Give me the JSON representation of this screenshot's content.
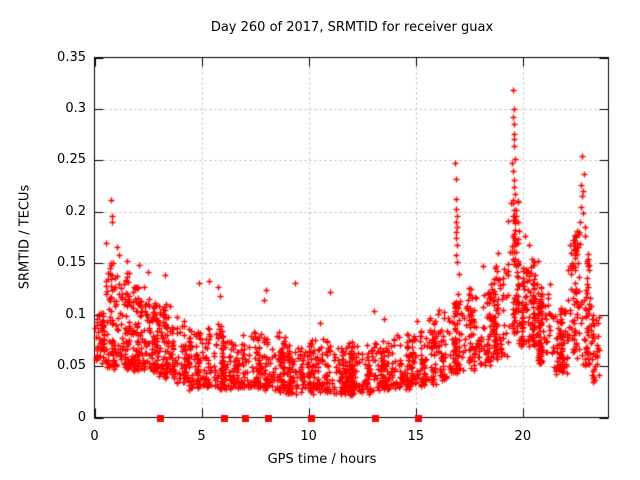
{
  "chart_data": {
    "type": "scatter",
    "title": "Day 260 of 2017, SRMTID for receiver guax",
    "xlabel": "GPS time / hours",
    "ylabel": "SRMTID / TECUs",
    "xlim": [
      0,
      24
    ],
    "ylim": [
      0,
      0.35
    ],
    "xticks": [
      0,
      5,
      10,
      15,
      20
    ],
    "xtick_labels": [
      "0",
      "5",
      "10",
      "15",
      "20"
    ],
    "yticks": [
      0,
      0.05,
      0.1,
      0.15,
      0.2,
      0.25,
      0.3,
      0.35
    ],
    "ytick_labels": [
      "0",
      "0.05",
      "0.1",
      "0.15",
      "0.2",
      "0.25",
      "0.3",
      "0.35"
    ],
    "grid": {
      "show": true,
      "color": "#b8b8b8",
      "dash": [
        2,
        3
      ]
    },
    "legend": "none",
    "frame_color": "#000000",
    "text_color": "#000000",
    "series_color": "#ff0000",
    "marker": "plus",
    "marker_size": 7,
    "point_cloud_segments": [
      [
        0.0,
        0.5,
        55,
        0.055,
        0.105,
        1.3
      ],
      [
        0.5,
        1.0,
        70,
        0.05,
        0.155,
        1.6
      ],
      [
        1.0,
        1.6,
        85,
        0.05,
        0.145,
        1.5
      ],
      [
        1.6,
        2.2,
        80,
        0.048,
        0.13,
        1.6
      ],
      [
        2.2,
        3.0,
        100,
        0.045,
        0.115,
        1.5
      ],
      [
        3.0,
        3.6,
        70,
        0.04,
        0.11,
        1.5
      ],
      [
        3.6,
        4.4,
        75,
        0.035,
        0.095,
        1.5
      ],
      [
        4.4,
        5.2,
        85,
        0.03,
        0.085,
        1.6
      ],
      [
        5.2,
        6.0,
        90,
        0.03,
        0.09,
        1.7
      ],
      [
        6.0,
        7.0,
        95,
        0.03,
        0.082,
        1.7
      ],
      [
        7.0,
        8.0,
        95,
        0.03,
        0.085,
        1.7
      ],
      [
        8.0,
        9.0,
        95,
        0.028,
        0.08,
        1.7
      ],
      [
        9.0,
        10.0,
        95,
        0.025,
        0.072,
        1.6
      ],
      [
        10.0,
        11.0,
        100,
        0.025,
        0.075,
        1.6
      ],
      [
        11.0,
        12.0,
        105,
        0.025,
        0.072,
        1.6
      ],
      [
        12.0,
        13.0,
        100,
        0.025,
        0.07,
        1.6
      ],
      [
        13.0,
        14.0,
        95,
        0.028,
        0.075,
        1.6
      ],
      [
        14.0,
        15.0,
        90,
        0.03,
        0.082,
        1.6
      ],
      [
        15.0,
        15.6,
        45,
        0.03,
        0.085,
        1.6
      ],
      [
        15.6,
        16.5,
        80,
        0.035,
        0.1,
        1.6
      ],
      [
        16.5,
        17.5,
        90,
        0.045,
        0.12,
        1.5
      ],
      [
        17.5,
        18.5,
        100,
        0.05,
        0.125,
        1.4
      ],
      [
        18.5,
        19.3,
        95,
        0.06,
        0.15,
        1.4
      ],
      [
        19.3,
        19.8,
        70,
        0.08,
        0.21,
        1.2
      ],
      [
        19.8,
        20.6,
        110,
        0.07,
        0.155,
        1.4
      ],
      [
        20.6,
        21.4,
        100,
        0.055,
        0.13,
        1.5
      ],
      [
        21.4,
        22.1,
        85,
        0.045,
        0.105,
        1.5
      ],
      [
        22.1,
        22.8,
        75,
        0.06,
        0.185,
        1.2
      ],
      [
        22.8,
        23.2,
        50,
        0.05,
        0.16,
        1.4
      ],
      [
        23.2,
        23.55,
        30,
        0.035,
        0.1,
        1.5
      ]
    ],
    "feature_points": [
      [
        0.78,
        0.211
      ],
      [
        0.8,
        0.196
      ],
      [
        0.82,
        0.19
      ],
      [
        0.55,
        0.17
      ],
      [
        1.05,
        0.166
      ],
      [
        1.15,
        0.158
      ],
      [
        1.5,
        0.152
      ],
      [
        2.08,
        0.148
      ],
      [
        2.5,
        0.141
      ],
      [
        3.28,
        0.139
      ],
      [
        2.3,
        0.127
      ],
      [
        4.9,
        0.131
      ],
      [
        5.35,
        0.133
      ],
      [
        5.75,
        0.127
      ],
      [
        5.85,
        0.118
      ],
      [
        7.9,
        0.114
      ],
      [
        8.02,
        0.124
      ],
      [
        9.35,
        0.131
      ],
      [
        11.0,
        0.122
      ],
      [
        10.55,
        0.092
      ],
      [
        13.05,
        0.104
      ],
      [
        13.5,
        0.096
      ],
      [
        15.05,
        0.094
      ],
      [
        16.1,
        0.105
      ],
      [
        16.85,
        0.247
      ],
      [
        16.87,
        0.232
      ],
      [
        16.9,
        0.212
      ],
      [
        16.88,
        0.203
      ],
      [
        16.92,
        0.196
      ],
      [
        16.86,
        0.19
      ],
      [
        16.93,
        0.185
      ],
      [
        16.9,
        0.18
      ],
      [
        16.87,
        0.175
      ],
      [
        16.91,
        0.168
      ],
      [
        16.89,
        0.158
      ],
      [
        16.94,
        0.151
      ],
      [
        17.0,
        0.14
      ],
      [
        18.15,
        0.147
      ],
      [
        18.85,
        0.16
      ],
      [
        19.55,
        0.318
      ],
      [
        19.58,
        0.3
      ],
      [
        19.56,
        0.292
      ],
      [
        19.59,
        0.285
      ],
      [
        19.61,
        0.276
      ],
      [
        19.57,
        0.271
      ],
      [
        19.6,
        0.264
      ],
      [
        19.63,
        0.251
      ],
      [
        19.5,
        0.247
      ],
      [
        19.55,
        0.24
      ],
      [
        19.6,
        0.231
      ],
      [
        19.58,
        0.224
      ],
      [
        19.64,
        0.217
      ],
      [
        19.56,
        0.209
      ],
      [
        19.6,
        0.202
      ],
      [
        19.54,
        0.196
      ],
      [
        19.62,
        0.189
      ],
      [
        19.65,
        0.182
      ],
      [
        19.59,
        0.175
      ],
      [
        19.61,
        0.167
      ],
      [
        19.57,
        0.161
      ],
      [
        19.63,
        0.154
      ],
      [
        20.1,
        0.176
      ],
      [
        20.3,
        0.168
      ],
      [
        20.7,
        0.152
      ],
      [
        22.78,
        0.254
      ],
      [
        22.84,
        0.237
      ],
      [
        22.72,
        0.226
      ],
      [
        22.8,
        0.22
      ],
      [
        22.76,
        0.215
      ],
      [
        22.7,
        0.205
      ],
      [
        22.82,
        0.199
      ],
      [
        22.65,
        0.19
      ],
      [
        22.88,
        0.185
      ],
      [
        22.6,
        0.18
      ],
      [
        22.92,
        0.176
      ],
      [
        22.55,
        0.17
      ],
      [
        22.5,
        0.162
      ],
      [
        22.45,
        0.155
      ],
      [
        22.35,
        0.148
      ],
      [
        22.25,
        0.14
      ],
      [
        23.0,
        0.13
      ],
      [
        23.1,
        0.11
      ],
      [
        23.3,
        0.09
      ],
      [
        23.45,
        0.052
      ],
      [
        23.35,
        0.036
      ]
    ],
    "baseline_squares": {
      "shape": "square",
      "color": "#ff0000",
      "y": 0,
      "hours": [
        3.05,
        6.05,
        7.05,
        8.1,
        10.1,
        13.1,
        15.1
      ]
    }
  }
}
